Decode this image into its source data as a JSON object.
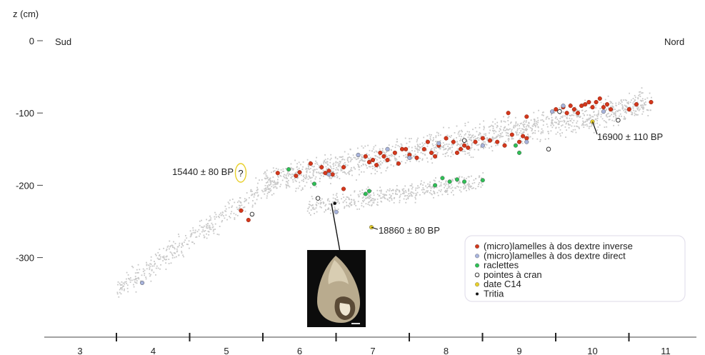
{
  "chart_data": {
    "type": "scatter",
    "ylabel": "z (cm)",
    "xlim": [
      2.5,
      11.6
    ],
    "ylim": [
      -450,
      0
    ],
    "y_ticks": [
      0,
      -100,
      -200,
      -300
    ],
    "x_ticks": [
      3,
      4,
      5,
      6,
      7,
      8,
      9,
      10,
      11
    ],
    "side_labels": {
      "left": "Sud",
      "right": "Nord"
    },
    "grid": false,
    "legend_position": "bottom-right",
    "colors": {
      "inverse": "#d3381c",
      "direct": "#a7b3dc",
      "raclettes": "#2ebf55",
      "pointes": "#ffffff",
      "c14": "#e8cf2a",
      "tritia": "#111111",
      "background": "#c8c8c8"
    },
    "legend": [
      {
        "key": "inverse",
        "label": "(micro)lamelles à dos dextre inverse"
      },
      {
        "key": "direct",
        "label": "(micro)lamelles à dos dextre direct"
      },
      {
        "key": "raclettes",
        "label": "raclettes"
      },
      {
        "key": "pointes",
        "label": "pointes à cran"
      },
      {
        "key": "c14",
        "label": "date C14"
      },
      {
        "key": "tritia",
        "label": "Tritia"
      }
    ],
    "series": [
      {
        "key": "inverse",
        "points": [
          [
            5.2,
            -235
          ],
          [
            5.3,
            -248
          ],
          [
            5.7,
            -183
          ],
          [
            5.95,
            -187
          ],
          [
            6.0,
            -182
          ],
          [
            6.15,
            -170
          ],
          [
            6.3,
            -175
          ],
          [
            6.35,
            -183
          ],
          [
            6.4,
            -180
          ],
          [
            6.45,
            -185
          ],
          [
            6.6,
            -175
          ],
          [
            6.9,
            -160
          ],
          [
            6.95,
            -168
          ],
          [
            7.0,
            -165
          ],
          [
            7.05,
            -172
          ],
          [
            7.15,
            -160
          ],
          [
            7.2,
            -165
          ],
          [
            7.3,
            -155
          ],
          [
            7.35,
            -170
          ],
          [
            7.45,
            -150
          ],
          [
            7.5,
            -158
          ],
          [
            7.6,
            -162
          ],
          [
            7.7,
            -150
          ],
          [
            7.75,
            -140
          ],
          [
            7.8,
            -155
          ],
          [
            7.85,
            -160
          ],
          [
            7.9,
            -145
          ],
          [
            8.0,
            -135
          ],
          [
            8.1,
            -140
          ],
          [
            8.15,
            -155
          ],
          [
            8.2,
            -150
          ],
          [
            8.25,
            -145
          ],
          [
            8.3,
            -148
          ],
          [
            8.4,
            -140
          ],
          [
            8.5,
            -135
          ],
          [
            8.6,
            -138
          ],
          [
            8.7,
            -140
          ],
          [
            8.8,
            -145
          ],
          [
            8.9,
            -130
          ],
          [
            9.0,
            -140
          ],
          [
            9.05,
            -132
          ],
          [
            9.1,
            -135
          ],
          [
            8.85,
            -100
          ],
          [
            9.1,
            -105
          ],
          [
            9.5,
            -95
          ],
          [
            9.6,
            -92
          ],
          [
            9.65,
            -100
          ],
          [
            9.7,
            -90
          ],
          [
            9.75,
            -95
          ],
          [
            9.8,
            -100
          ],
          [
            9.85,
            -90
          ],
          [
            9.9,
            -88
          ],
          [
            9.95,
            -85
          ],
          [
            10.0,
            -92
          ],
          [
            10.05,
            -85
          ],
          [
            10.1,
            -80
          ],
          [
            10.15,
            -92
          ],
          [
            10.2,
            -88
          ],
          [
            10.25,
            -95
          ],
          [
            10.5,
            -95
          ],
          [
            10.6,
            -88
          ],
          [
            10.8,
            -85
          ],
          [
            6.6,
            -205
          ],
          [
            7.1,
            -155
          ],
          [
            7.4,
            -150
          ]
        ]
      },
      {
        "key": "direct",
        "points": [
          [
            3.85,
            -335
          ],
          [
            6.5,
            -237
          ],
          [
            6.4,
            -185
          ],
          [
            6.8,
            -158
          ],
          [
            7.2,
            -150
          ],
          [
            7.5,
            -162
          ],
          [
            8.5,
            -145
          ],
          [
            9.1,
            -140
          ],
          [
            9.45,
            -98
          ],
          [
            9.6,
            -90
          ],
          [
            10.15,
            -98
          ],
          [
            7.9,
            -142
          ]
        ]
      },
      {
        "key": "raclettes",
        "points": [
          [
            5.85,
            -178
          ],
          [
            6.2,
            -198
          ],
          [
            6.9,
            -212
          ],
          [
            6.95,
            -208
          ],
          [
            7.85,
            -200
          ],
          [
            7.95,
            -190
          ],
          [
            8.05,
            -195
          ],
          [
            8.15,
            -192
          ],
          [
            8.25,
            -195
          ],
          [
            8.5,
            -193
          ],
          [
            9.0,
            -155
          ],
          [
            8.95,
            -145
          ]
        ]
      },
      {
        "key": "pointes",
        "points": [
          [
            5.35,
            -240
          ],
          [
            6.25,
            -218
          ],
          [
            8.25,
            -138
          ],
          [
            9.4,
            -150
          ],
          [
            9.55,
            -98
          ],
          [
            10.35,
            -110
          ]
        ]
      },
      {
        "key": "c14",
        "points": [
          [
            6.98,
            -258
          ],
          [
            10.0,
            -112
          ]
        ]
      },
      {
        "key": "tritia",
        "points": [
          [
            6.48,
            -225
          ]
        ]
      }
    ],
    "annotations": [
      {
        "text": "15440 ± 80 BP",
        "x": 5.2,
        "y": -180,
        "mark": "?"
      },
      {
        "text": "16900 ± 110 BP",
        "x": 10.0,
        "y": -112
      },
      {
        "text": "18860 ± 80 BP",
        "x": 6.98,
        "y": -258
      }
    ]
  }
}
